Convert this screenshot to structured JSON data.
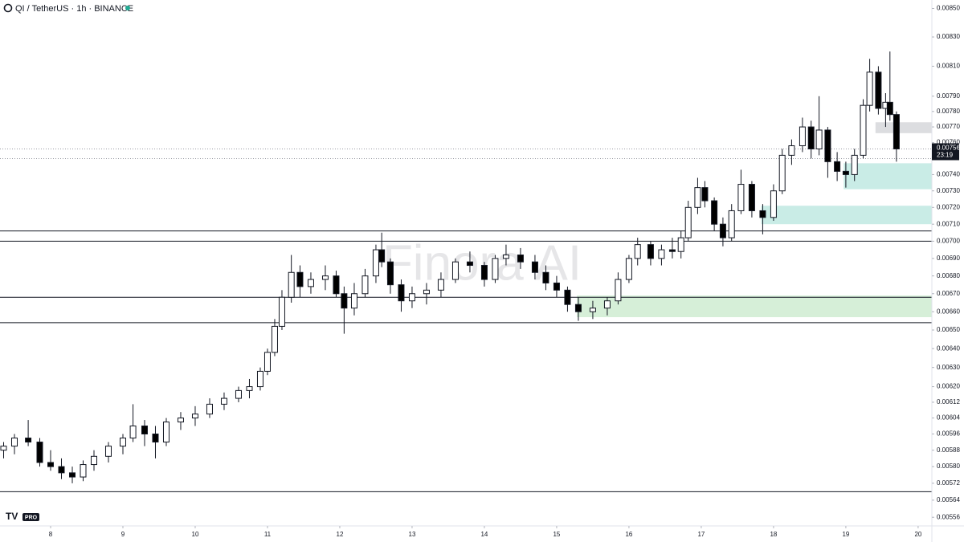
{
  "chart_data": {
    "type": "candlestick",
    "title": "QI / TetherUS · 1h · BINANCE",
    "watermark": "Finora AI",
    "badge": "PRO",
    "log_scale": true,
    "xlim": [
      7.3,
      20.19
    ],
    "xticks": [
      8,
      9,
      10,
      11,
      12,
      13,
      14,
      15,
      16,
      17,
      18,
      19,
      20
    ],
    "ylim": [
      0.00552,
      0.00856
    ],
    "yticks": [
      {
        "value": 0.0085,
        "label": "0.00850"
      },
      {
        "value": 0.0083,
        "label": "0.00830"
      },
      {
        "value": 0.0081,
        "label": "0.00810"
      },
      {
        "value": 0.0079,
        "label": "0.00790"
      },
      {
        "value": 0.0078,
        "label": "0.00780"
      },
      {
        "value": 0.0077,
        "label": "0.00770"
      },
      {
        "value": 0.0076,
        "label": "0.00760"
      },
      {
        "value": 0.0074,
        "label": "0.00740"
      },
      {
        "value": 0.0073,
        "label": "0.00730"
      },
      {
        "value": 0.0072,
        "label": "0.00720"
      },
      {
        "value": 0.0071,
        "label": "0.00710"
      },
      {
        "value": 0.007,
        "label": "0.00700"
      },
      {
        "value": 0.0069,
        "label": "0.00690"
      },
      {
        "value": 0.0068,
        "label": "0.00680"
      },
      {
        "value": 0.0067,
        "label": "0.00670"
      },
      {
        "value": 0.0066,
        "label": "0.00660"
      },
      {
        "value": 0.0065,
        "label": "0.00650"
      },
      {
        "value": 0.0064,
        "label": "0.00640"
      },
      {
        "value": 0.0063,
        "label": "0.00630"
      },
      {
        "value": 0.0062,
        "label": "0.00620"
      },
      0.00612,
      0.00604,
      0.00596,
      0.00588,
      {
        "value": 0.0058,
        "label": "0.00580"
      },
      0.00572,
      0.00564,
      0.00556
    ],
    "up_color": "#ffffff",
    "down_color": "#000000",
    "x": [
      7.35,
      7.5,
      7.69,
      7.85,
      8.0,
      8.15,
      8.3,
      8.45,
      8.6,
      8.8,
      9.0,
      9.14,
      9.3,
      9.45,
      9.6,
      9.8,
      10.0,
      10.2,
      10.4,
      10.6,
      10.75,
      10.9,
      11.0,
      11.1,
      11.2,
      11.33,
      11.45,
      11.6,
      11.8,
      11.95,
      12.06,
      12.2,
      12.35,
      12.5,
      12.58,
      12.7,
      12.85,
      13.0,
      13.2,
      13.4,
      13.6,
      13.8,
      14.0,
      14.15,
      14.3,
      14.5,
      14.7,
      14.85,
      15.0,
      15.15,
      15.3,
      15.5,
      15.7,
      15.85,
      16.0,
      16.12,
      16.3,
      16.45,
      16.6,
      16.72,
      16.82,
      16.95,
      17.05,
      17.18,
      17.3,
      17.42,
      17.55,
      17.7,
      17.85,
      18.0,
      18.12,
      18.25,
      18.4,
      18.52,
      18.63,
      18.75,
      18.88,
      19.0,
      19.12,
      19.24,
      19.33,
      19.45,
      19.55,
      19.61,
      19.7
    ],
    "open": [
      0.00588,
      0.0059,
      0.00594,
      0.00592,
      0.00582,
      0.0058,
      0.00577,
      0.00575,
      0.00581,
      0.00585,
      0.0059,
      0.00594,
      0.006,
      0.00596,
      0.00592,
      0.00602,
      0.00604,
      0.00606,
      0.00611,
      0.00614,
      0.00618,
      0.0062,
      0.00628,
      0.00638,
      0.00652,
      0.00668,
      0.00682,
      0.00674,
      0.00678,
      0.0068,
      0.0067,
      0.00662,
      0.0067,
      0.0068,
      0.00695,
      0.00688,
      0.00675,
      0.00666,
      0.0067,
      0.00672,
      0.00678,
      0.00688,
      0.00686,
      0.00678,
      0.0069,
      0.00692,
      0.00688,
      0.00682,
      0.00676,
      0.00672,
      0.00664,
      0.0066,
      0.00662,
      0.00666,
      0.00678,
      0.0069,
      0.00698,
      0.0069,
      0.00695,
      0.00694,
      0.00702,
      0.0072,
      0.00732,
      0.00724,
      0.0071,
      0.00702,
      0.00718,
      0.00734,
      0.00718,
      0.00714,
      0.0073,
      0.00752,
      0.00758,
      0.0077,
      0.00756,
      0.00768,
      0.00748,
      0.00742,
      0.0074,
      0.00752,
      0.00784,
      0.00806,
      0.00782,
      0.00786,
      0.00778
    ],
    "high": [
      0.00592,
      0.00596,
      0.00603,
      0.00594,
      0.00588,
      0.00584,
      0.0058,
      0.00583,
      0.00588,
      0.00592,
      0.00596,
      0.00611,
      0.00603,
      0.006,
      0.00604,
      0.00607,
      0.0061,
      0.00614,
      0.00617,
      0.0062,
      0.00624,
      0.0063,
      0.0064,
      0.00656,
      0.00672,
      0.00692,
      0.00686,
      0.00682,
      0.00686,
      0.00683,
      0.00674,
      0.00676,
      0.00684,
      0.00698,
      0.00705,
      0.0069,
      0.00678,
      0.00674,
      0.00676,
      0.00682,
      0.0069,
      0.00694,
      0.00688,
      0.00692,
      0.00698,
      0.00696,
      0.00692,
      0.00686,
      0.0068,
      0.00674,
      0.00668,
      0.00666,
      0.00668,
      0.00682,
      0.00692,
      0.00702,
      0.007,
      0.00698,
      0.00702,
      0.00706,
      0.00724,
      0.00738,
      0.00736,
      0.00726,
      0.00714,
      0.00722,
      0.00743,
      0.00736,
      0.00722,
      0.00734,
      0.00756,
      0.00762,
      0.00776,
      0.00774,
      0.0079,
      0.0077,
      0.00754,
      0.00748,
      0.00756,
      0.00788,
      0.00815,
      0.0081,
      0.00792,
      0.0082,
      0.0078
    ],
    "low": [
      0.00584,
      0.00586,
      0.0059,
      0.0058,
      0.00578,
      0.00574,
      0.00572,
      0.00573,
      0.00578,
      0.00582,
      0.00586,
      0.00592,
      0.0059,
      0.00584,
      0.0059,
      0.00598,
      0.006,
      0.00604,
      0.00608,
      0.00612,
      0.00614,
      0.00618,
      0.00626,
      0.00636,
      0.0065,
      0.00665,
      0.00668,
      0.0067,
      0.00672,
      0.00668,
      0.00648,
      0.00658,
      0.00668,
      0.00676,
      0.00685,
      0.0067,
      0.0066,
      0.00662,
      0.00664,
      0.00668,
      0.00676,
      0.00682,
      0.00674,
      0.00676,
      0.00686,
      0.00684,
      0.00678,
      0.00672,
      0.00668,
      0.0066,
      0.00655,
      0.00656,
      0.00658,
      0.00664,
      0.00676,
      0.00686,
      0.00686,
      0.00686,
      0.0069,
      0.0069,
      0.007,
      0.00716,
      0.0072,
      0.00706,
      0.00697,
      0.007,
      0.00716,
      0.00714,
      0.00704,
      0.00712,
      0.00728,
      0.00746,
      0.00754,
      0.0075,
      0.00752,
      0.00738,
      0.00736,
      0.00732,
      0.00736,
      0.0075,
      0.0078,
      0.00778,
      0.0077,
      0.00774,
      0.00748
    ],
    "close": [
      0.0059,
      0.00594,
      0.00592,
      0.00582,
      0.0058,
      0.00577,
      0.00575,
      0.00581,
      0.00585,
      0.0059,
      0.00594,
      0.006,
      0.00596,
      0.00592,
      0.00602,
      0.00604,
      0.00606,
      0.00611,
      0.00614,
      0.00618,
      0.0062,
      0.00628,
      0.00638,
      0.00652,
      0.00668,
      0.00682,
      0.00674,
      0.00678,
      0.0068,
      0.0067,
      0.00662,
      0.0067,
      0.0068,
      0.00695,
      0.00688,
      0.00675,
      0.00666,
      0.0067,
      0.00672,
      0.00678,
      0.00688,
      0.00686,
      0.00678,
      0.0069,
      0.00692,
      0.00688,
      0.00682,
      0.00676,
      0.00672,
      0.00664,
      0.0066,
      0.00662,
      0.00666,
      0.00678,
      0.0069,
      0.00698,
      0.0069,
      0.00695,
      0.00694,
      0.00702,
      0.0072,
      0.00732,
      0.00724,
      0.0071,
      0.00702,
      0.00718,
      0.00734,
      0.00718,
      0.00714,
      0.0073,
      0.00752,
      0.00758,
      0.0077,
      0.00756,
      0.00768,
      0.00748,
      0.00742,
      0.0074,
      0.00752,
      0.00784,
      0.00806,
      0.00782,
      0.00786,
      0.00778,
      0.00756
    ],
    "levels": [
      0.00706,
      0.007,
      0.00668,
      0.00654,
      0.00568
    ],
    "dotted_lines": [
      0.00756,
      0.0075
    ],
    "zones": [
      {
        "x": 19.41,
        "low": 0.00766,
        "high": 0.00773,
        "color": "#dcdde0"
      },
      {
        "x": 18.97,
        "low": 0.00731,
        "high": 0.00747,
        "color": "#c9ece6"
      },
      {
        "x": 17.83,
        "low": 0.0071,
        "high": 0.00721,
        "color": "#c9ece6"
      },
      {
        "x": 15.28,
        "low": 0.00657,
        "high": 0.00669,
        "color": "#d6efd8"
      }
    ],
    "last_price": 0.00756,
    "countdown": "23:19"
  }
}
